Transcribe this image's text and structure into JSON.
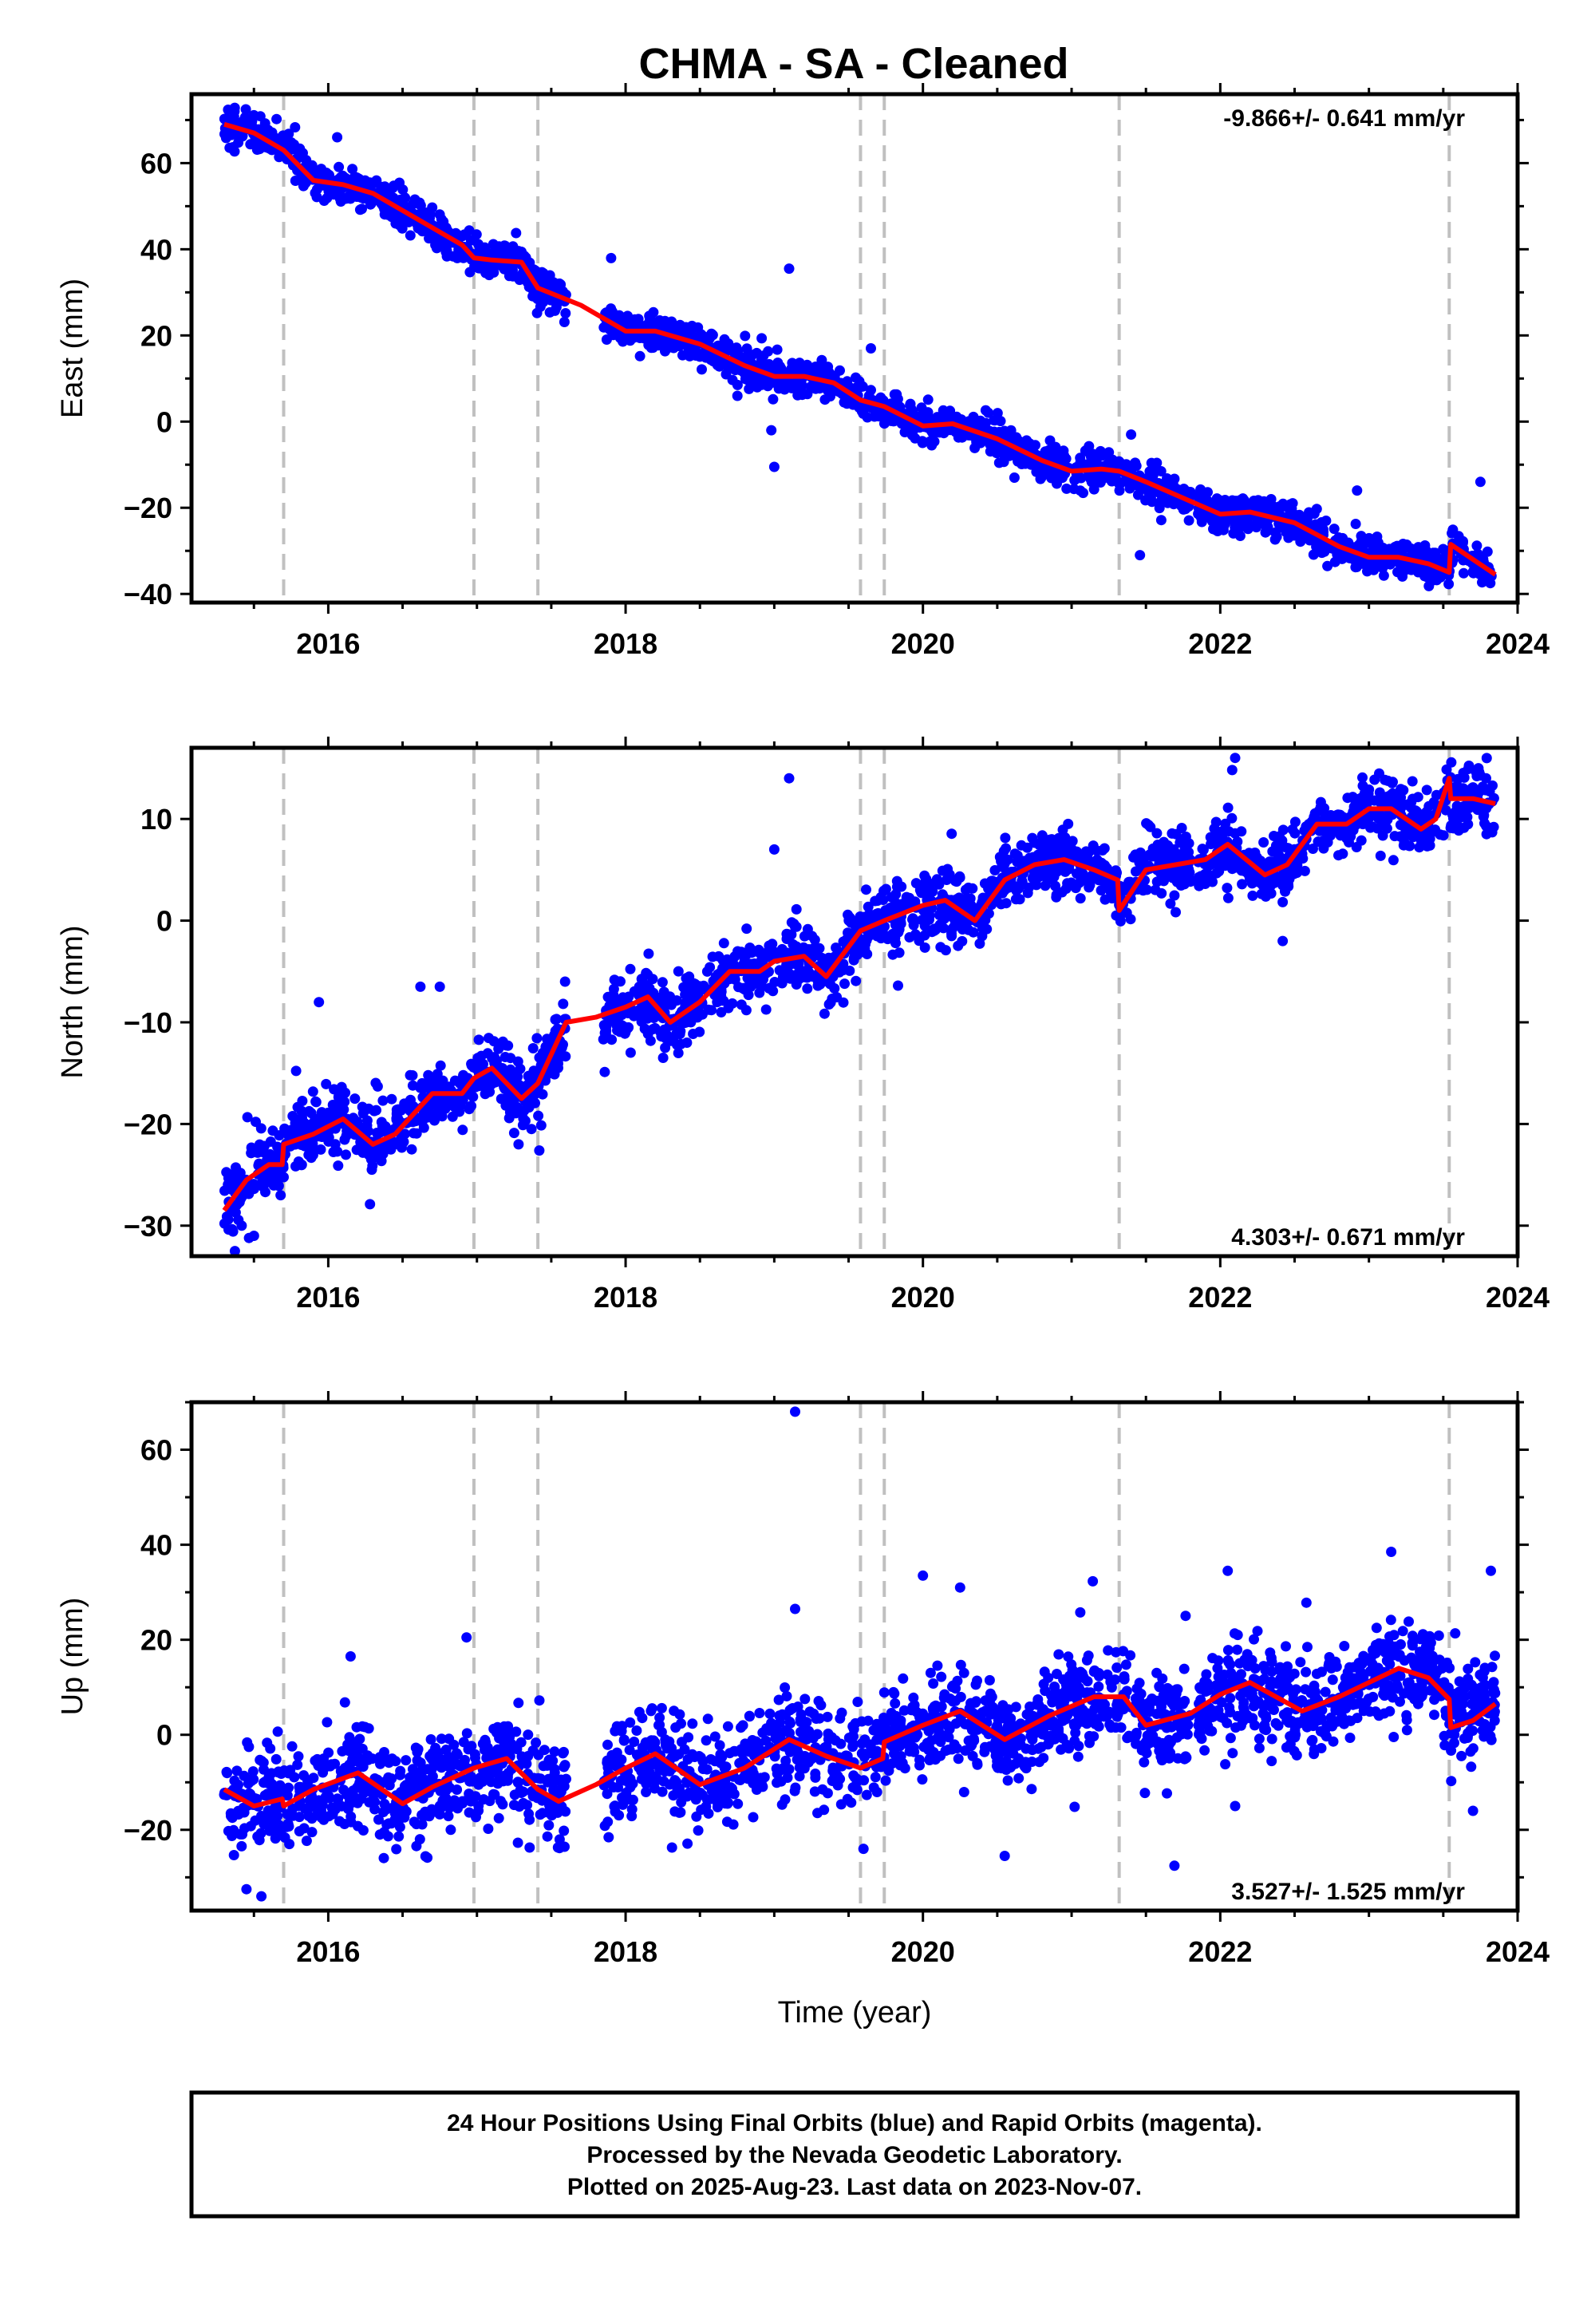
{
  "chart_title": "CHMA  - SA - Cleaned",
  "colors": {
    "points": "#0000ff",
    "model": "#ff0000",
    "event_lines": "#c0c0c0",
    "frame": "#000000"
  },
  "event_times": [
    2015.7,
    2016.98,
    2017.41,
    2019.58,
    2019.74,
    2021.32,
    2023.54
  ],
  "footer": {
    "line1": "24 Hour Positions Using Final Orbits (blue) and Rapid Orbits (magenta).",
    "line2": "Processed by the Nevada Geodetic Laboratory.",
    "line3": "Plotted on 2025-Aug-23. Last data on 2023-Nov-07."
  },
  "chart_data": [
    {
      "type": "scatter",
      "ylabel": "East (mm)",
      "xlabel": "",
      "xlim": [
        2015.08,
        2024.0
      ],
      "ylim": [
        -42,
        76
      ],
      "x_ticks": [
        2016,
        2018,
        2020,
        2022,
        2024
      ],
      "x_tick_labels": [
        "2016",
        "2018",
        "2020",
        "2022",
        "2024"
      ],
      "y_ticks": [
        -40,
        -20,
        0,
        20,
        40,
        60
      ],
      "y_tick_labels": [
        "−40",
        "−20",
        "0",
        "20",
        "40",
        "60"
      ],
      "rate_label": "-9.866+/- 0.641 mm/yr",
      "rate_position": "top-right",
      "series": [
        {
          "kind": "model",
          "x": [
            2015.3,
            2015.5,
            2015.7,
            2015.9,
            2016.1,
            2016.3,
            2016.5,
            2016.7,
            2016.9,
            2016.98,
            2017.1,
            2017.3,
            2017.41,
            2017.7,
            2018.0,
            2018.2,
            2018.5,
            2018.8,
            2019.0,
            2019.2,
            2019.4,
            2019.58,
            2019.74,
            2020.0,
            2020.2,
            2020.5,
            2020.8,
            2021.0,
            2021.2,
            2021.32,
            2021.5,
            2021.8,
            2022.0,
            2022.2,
            2022.5,
            2022.8,
            2023.0,
            2023.2,
            2023.4,
            2023.54,
            2023.55,
            2023.7,
            2023.85
          ],
          "y": [
            69,
            67,
            63,
            56,
            55,
            53,
            49,
            45,
            41,
            38,
            37.5,
            37,
            31,
            27,
            21,
            21,
            18,
            13,
            10.5,
            10.5,
            9,
            5,
            3.5,
            -1,
            -0.5,
            -4,
            -9,
            -11.5,
            -11,
            -11.5,
            -14,
            -18.5,
            -21.5,
            -21,
            -23.5,
            -29,
            -31.5,
            -31.5,
            -33,
            -35,
            -28.5,
            -32,
            -35.5
          ]
        },
        {
          "kind": "observations",
          "seed": 17,
          "n": 2300,
          "noise": 2.0,
          "gaps": [
            [
              2017.6,
              2017.85
            ],
            [
              2021.8,
              2021.85
            ]
          ],
          "outliers": [
            [
              2019.1,
              35.5
            ],
            [
              2019.0,
              -10.5
            ],
            [
              2019.65,
              17
            ],
            [
              2018.98,
              -2
            ],
            [
              2023.75,
              -14
            ],
            [
              2021.4,
              -3
            ],
            [
              2022.92,
              -16
            ],
            [
              2016.06,
              66
            ],
            [
              2021.46,
              -31
            ]
          ]
        }
      ]
    },
    {
      "type": "scatter",
      "ylabel": "North (mm)",
      "xlabel": "",
      "xlim": [
        2015.08,
        2024.0
      ],
      "ylim": [
        -33,
        17
      ],
      "x_ticks": [
        2016,
        2018,
        2020,
        2022,
        2024
      ],
      "x_tick_labels": [
        "2016",
        "2018",
        "2020",
        "2022",
        "2024"
      ],
      "y_ticks": [
        -30,
        -20,
        -10,
        0,
        10
      ],
      "y_tick_labels": [
        "−30",
        "−20",
        "−10",
        "0",
        "10"
      ],
      "rate_label": "4.303+/- 0.671 mm/yr",
      "rate_position": "bottom-right",
      "series": [
        {
          "kind": "model",
          "x": [
            2015.3,
            2015.45,
            2015.6,
            2015.69,
            2015.7,
            2015.9,
            2016.1,
            2016.3,
            2016.45,
            2016.7,
            2016.9,
            2016.98,
            2017.1,
            2017.3,
            2017.41,
            2017.6,
            2017.8,
            2018.0,
            2018.15,
            2018.3,
            2018.5,
            2018.7,
            2018.9,
            2019.0,
            2019.2,
            2019.35,
            2019.58,
            2019.74,
            2020.0,
            2020.15,
            2020.35,
            2020.55,
            2020.75,
            2020.95,
            2021.15,
            2021.31,
            2021.32,
            2021.5,
            2021.7,
            2021.9,
            2022.05,
            2022.3,
            2022.45,
            2022.65,
            2022.85,
            2023.0,
            2023.15,
            2023.35,
            2023.45,
            2023.54,
            2023.55,
            2023.7,
            2023.85
          ],
          "y": [
            -28.5,
            -25.5,
            -24,
            -24,
            -22,
            -21,
            -19.5,
            -22,
            -21,
            -17,
            -17,
            -15.5,
            -14.5,
            -17.5,
            -16,
            -10,
            -9.5,
            -8.5,
            -7.5,
            -10,
            -8,
            -5,
            -5,
            -4,
            -3.5,
            -5.5,
            -1,
            0,
            1.5,
            2,
            0,
            4,
            5.5,
            6,
            5,
            4,
            1,
            5,
            5.5,
            6,
            7.5,
            4.5,
            5.5,
            9.5,
            9.5,
            11,
            11,
            9,
            10,
            14,
            12,
            12,
            11.5
          ]
        },
        {
          "kind": "observations",
          "seed": 29,
          "n": 2300,
          "noise": 1.6,
          "gaps": [
            [
              2017.6,
              2017.85
            ],
            [
              2021.8,
              2021.85
            ]
          ],
          "outliers": [
            [
              2019.1,
              14
            ],
            [
              2019.0,
              7
            ],
            [
              2016.75,
              -6.5
            ],
            [
              2016.62,
              -6.5
            ],
            [
              2017.28,
              -22
            ],
            [
              2021.3,
              0.5
            ],
            [
              2022.1,
              16
            ],
            [
              2022.42,
              -2
            ],
            [
              2015.5,
              -31
            ]
          ]
        }
      ]
    },
    {
      "type": "scatter",
      "ylabel": "Up (mm)",
      "xlabel": "Time (year)",
      "xlim": [
        2015.08,
        2024.0
      ],
      "ylim": [
        -37,
        70
      ],
      "x_ticks": [
        2016,
        2018,
        2020,
        2022,
        2024
      ],
      "x_tick_labels": [
        "2016",
        "2018",
        "2020",
        "2022",
        "2024"
      ],
      "y_ticks": [
        -20,
        0,
        20,
        40,
        60
      ],
      "y_tick_labels": [
        "−20",
        "0",
        "20",
        "40",
        "60"
      ],
      "rate_label": "3.527+/- 1.525 mm/yr",
      "rate_position": "bottom-right",
      "series": [
        {
          "kind": "model",
          "x": [
            2015.3,
            2015.5,
            2015.69,
            2015.7,
            2015.9,
            2016.2,
            2016.5,
            2016.7,
            2016.98,
            2017.2,
            2017.41,
            2017.55,
            2017.8,
            2018.0,
            2018.2,
            2018.5,
            2018.8,
            2019.1,
            2019.35,
            2019.58,
            2019.73,
            2019.74,
            2020.0,
            2020.25,
            2020.55,
            2020.85,
            2021.15,
            2021.35,
            2021.5,
            2021.8,
            2022.0,
            2022.2,
            2022.55,
            2022.8,
            2023.0,
            2023.2,
            2023.4,
            2023.54,
            2023.55,
            2023.7,
            2023.85
          ],
          "y": [
            -11.5,
            -15,
            -13.5,
            -15,
            -11.5,
            -8,
            -14.5,
            -11,
            -7,
            -5,
            -11.5,
            -14,
            -10.5,
            -7,
            -4,
            -10.5,
            -7,
            -1,
            -4.5,
            -7,
            -5,
            -1.5,
            2,
            5,
            -1,
            4,
            8,
            8,
            2,
            4.5,
            8.5,
            11,
            5,
            8,
            11,
            14,
            12,
            7.5,
            1.5,
            3,
            6.5
          ]
        },
        {
          "kind": "observations",
          "seed": 43,
          "n": 2300,
          "noise": 5.0,
          "gaps": [
            [
              2017.6,
              2017.85
            ],
            [
              2021.8,
              2021.85
            ]
          ],
          "outliers": [
            [
              2019.14,
              68
            ],
            [
              2019.14,
              26.5
            ],
            [
              2016.93,
              20.5
            ],
            [
              2016.15,
              16.5
            ],
            [
              2015.55,
              -34
            ],
            [
              2015.45,
              -32.5
            ],
            [
              2020.0,
              33.5
            ],
            [
              2020.25,
              31
            ],
            [
              2022.05,
              34.5
            ],
            [
              2023.15,
              38.5
            ],
            [
              2023.82,
              34.5
            ],
            [
              2020.55,
              -25.5
            ],
            [
              2019.6,
              -24
            ],
            [
              2022.1,
              -15
            ],
            [
              2023.7,
              -16
            ]
          ]
        }
      ]
    }
  ]
}
